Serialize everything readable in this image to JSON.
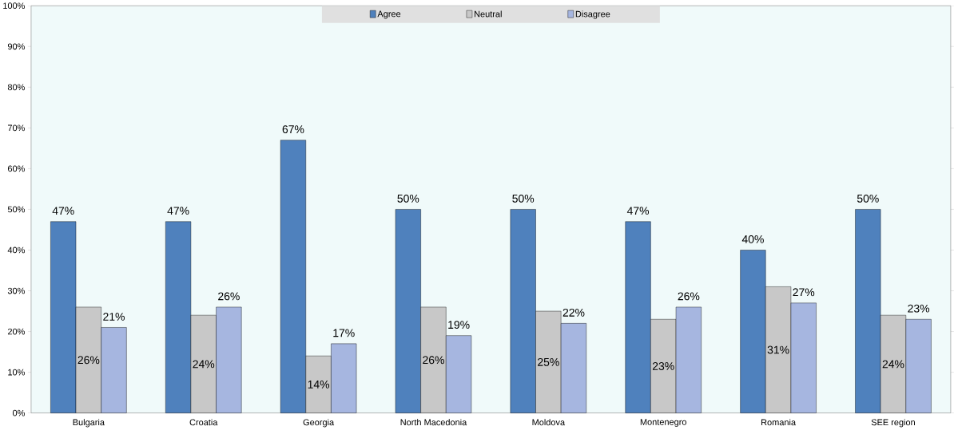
{
  "chart_data": {
    "type": "bar",
    "categories": [
      "Bulgaria",
      "Croatia",
      "Georgia",
      "North Macedonia",
      "Moldova",
      "Montenegro",
      "Romania",
      "SEE region"
    ],
    "series": [
      {
        "name": "Agree",
        "color": "#4f81bd",
        "values": [
          47,
          47,
          67,
          50,
          50,
          47,
          40,
          50
        ],
        "value_labels": [
          "47%",
          "47%",
          "67%",
          "50%",
          "50%",
          "47%",
          "40%",
          "50%"
        ]
      },
      {
        "name": "Neutral",
        "color": "#c8c8c8",
        "values": [
          26,
          24,
          14,
          26,
          25,
          23,
          31,
          24
        ],
        "value_labels": [
          "26%",
          "24%",
          "14%",
          "26%",
          "25%",
          "23%",
          "31%",
          "24%"
        ]
      },
      {
        "name": "Disagree",
        "color": "#a6b6e0",
        "values": [
          21,
          26,
          17,
          19,
          22,
          26,
          27,
          23
        ],
        "value_labels": [
          "21%",
          "26%",
          "17%",
          "19%",
          "22%",
          "26%",
          "27%",
          "23%"
        ]
      }
    ],
    "ylim": [
      0,
      100
    ],
    "yticks": [
      {
        "value": 0,
        "label": "0%"
      },
      {
        "value": 10,
        "label": "10%"
      },
      {
        "value": 20,
        "label": "20%"
      },
      {
        "value": 30,
        "label": "30%"
      },
      {
        "value": 40,
        "label": "40%"
      },
      {
        "value": 50,
        "label": "50%"
      },
      {
        "value": 60,
        "label": "60%"
      },
      {
        "value": 70,
        "label": "70%"
      },
      {
        "value": 80,
        "label": "80%"
      },
      {
        "value": 90,
        "label": "90%"
      },
      {
        "value": 100,
        "label": "100%"
      }
    ],
    "legend": "top"
  }
}
